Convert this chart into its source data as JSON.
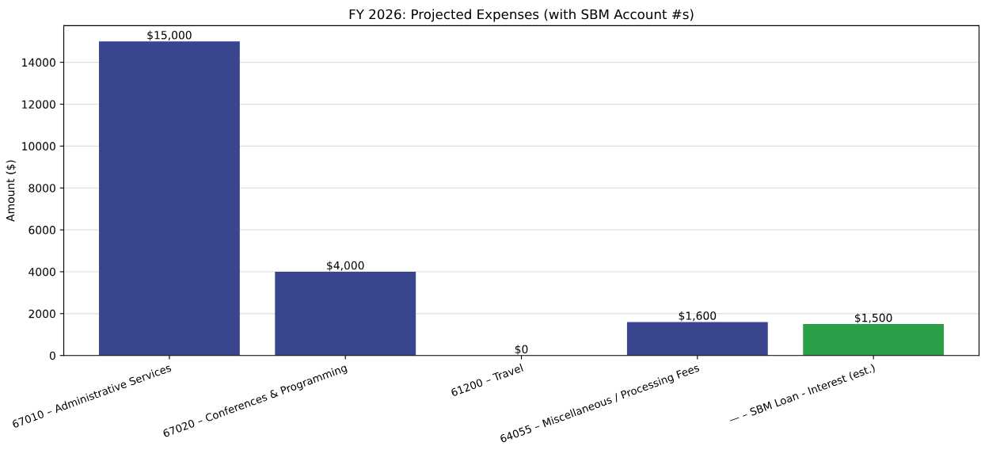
{
  "chart_data": {
    "type": "bar",
    "title": "FY 2026: Projected Expenses (with SBM Account #s)",
    "ylabel": "Amount ($)",
    "categories": [
      "67010 – Administrative Services",
      "67020 – Conferences & Programming",
      "61200 – Travel",
      "64055 – Miscellaneous / Processing Fees",
      "— – SBM Loan - Interest (est.)"
    ],
    "values": [
      15000,
      4000,
      0,
      1600,
      1500
    ],
    "colors": [
      "#3a4590",
      "#3a4590",
      "#3a4590",
      "#3a4590",
      "#2ca048"
    ],
    "value_labels": [
      "$15,000",
      "$4,000",
      "$0",
      "$1,600",
      "$1,500"
    ],
    "ylim": [
      0,
      15750
    ],
    "yticks": [
      0,
      2000,
      4000,
      6000,
      8000,
      10000,
      12000,
      14000
    ],
    "grid": "y"
  }
}
